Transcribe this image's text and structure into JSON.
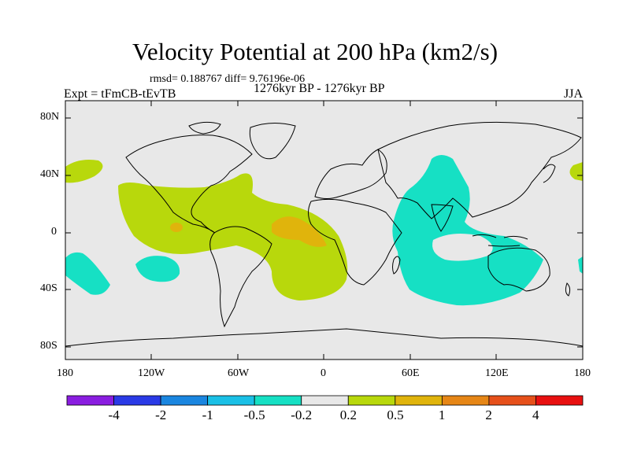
{
  "title": "Velocity Potential at 200 hPa (km2/s)",
  "stats": "rmsd= 0.188767 diff= 9.76196e-06",
  "experiment": "Expt = tFmCB-tEvTB",
  "period": "1276kyr BP - 1276kyr BP",
  "season": "JJA",
  "lat_ticks": [
    "80N",
    "40N",
    "0",
    "40S",
    "80S"
  ],
  "lon_ticks": [
    "180",
    "120W",
    "60W",
    "0",
    "60E",
    "120E",
    "180"
  ],
  "colorbar": {
    "labels": [
      "-4",
      "-2",
      "-1",
      "-0.5",
      "-0.2",
      "0.2",
      "0.5",
      "1",
      "2",
      "4"
    ],
    "colors": [
      "#8a1de0",
      "#2a3ae6",
      "#1a86e0",
      "#1ac0e6",
      "#16e0c4",
      "#e8e8e8",
      "#b8d80c",
      "#e0b40c",
      "#e68616",
      "#e6501a",
      "#e81010"
    ]
  },
  "map_style": {
    "ocean": "#e8e8e8",
    "coast": "#000000",
    "positive_weak": "#b8d80c",
    "positive_mid": "#e0b40c",
    "negative_weak": "#16e0c4"
  }
}
